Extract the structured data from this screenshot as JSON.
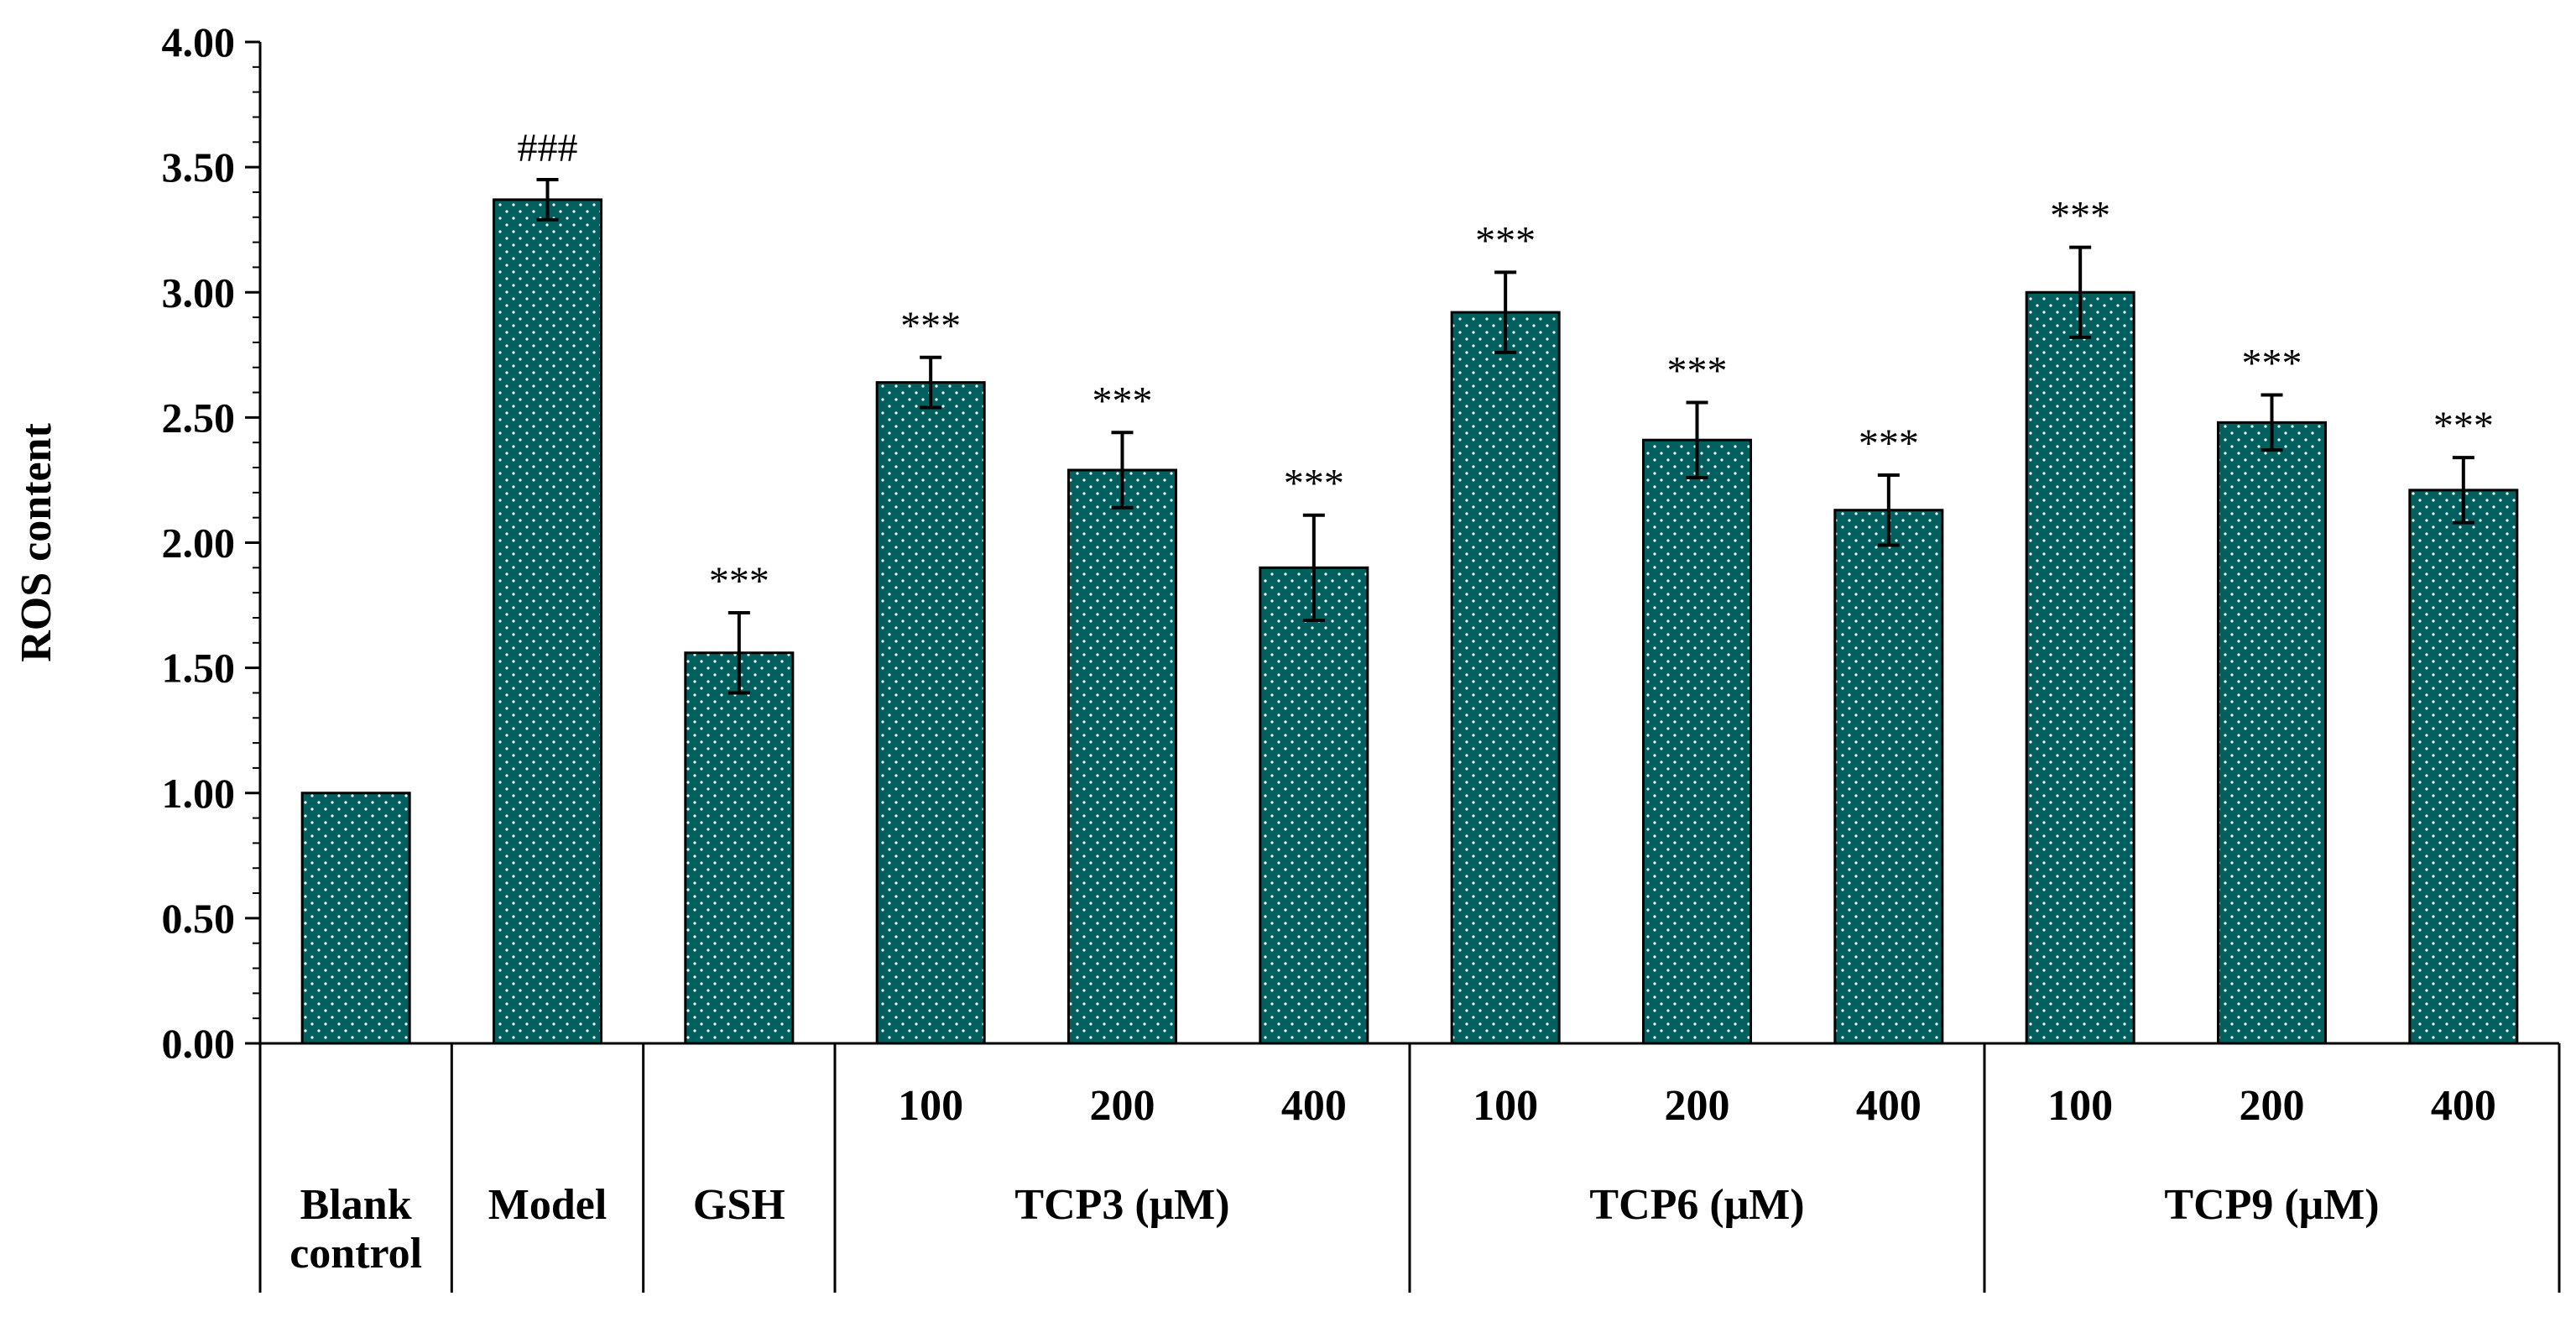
{
  "chart_data": {
    "type": "bar",
    "ylabel": "ROS content",
    "ylim": [
      0,
      4
    ],
    "yticks": [
      "0.00",
      "0.50",
      "1.00",
      "1.50",
      "2.00",
      "2.50",
      "3.00",
      "3.50",
      "4.00"
    ],
    "bar_color": "#006060",
    "bars": [
      {
        "category": "Blank control",
        "group": "",
        "value": 1.0,
        "error": 0.0,
        "sig": ""
      },
      {
        "category": "Model",
        "group": "",
        "value": 3.37,
        "error": 0.08,
        "sig": "###"
      },
      {
        "category": "GSH",
        "group": "",
        "value": 1.56,
        "error": 0.16,
        "sig": "***"
      },
      {
        "category": "100",
        "group": "TCP3 (μM)",
        "value": 2.64,
        "error": 0.1,
        "sig": "***"
      },
      {
        "category": "200",
        "group": "TCP3 (μM)",
        "value": 2.29,
        "error": 0.15,
        "sig": "***"
      },
      {
        "category": "400",
        "group": "TCP3 (μM)",
        "value": 1.9,
        "error": 0.21,
        "sig": "***"
      },
      {
        "category": "100",
        "group": "TCP6 (μM)",
        "value": 2.92,
        "error": 0.16,
        "sig": "***"
      },
      {
        "category": "200",
        "group": "TCP6 (μM)",
        "value": 2.41,
        "error": 0.15,
        "sig": "***"
      },
      {
        "category": "400",
        "group": "TCP6 (μM)",
        "value": 2.13,
        "error": 0.14,
        "sig": "***"
      },
      {
        "category": "100",
        "group": "TCP9 (μM)",
        "value": 3.0,
        "error": 0.18,
        "sig": "***"
      },
      {
        "category": "200",
        "group": "TCP9 (μM)",
        "value": 2.48,
        "error": 0.11,
        "sig": "***"
      },
      {
        "category": "400",
        "group": "TCP9 (μM)",
        "value": 2.21,
        "error": 0.13,
        "sig": "***"
      }
    ],
    "top_level_labels": [
      {
        "lines": [
          "Blank",
          "control"
        ]
      },
      {
        "lines": [
          "Model"
        ]
      },
      {
        "lines": [
          "GSH"
        ]
      }
    ],
    "groups": [
      "TCP3 (μM)",
      "TCP6 (μM)",
      "TCP9 (μM)"
    ]
  }
}
